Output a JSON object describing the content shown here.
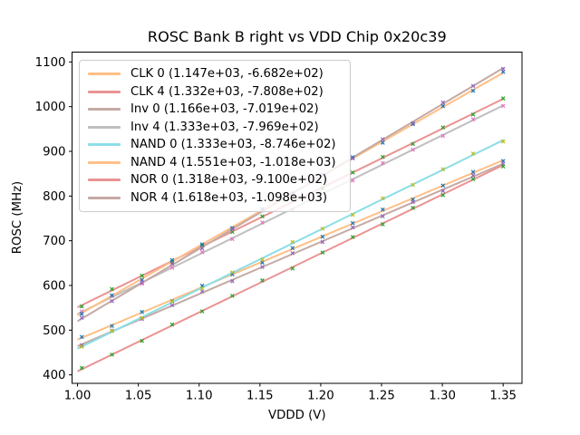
{
  "chart_data": {
    "type": "scatter",
    "title": "ROSC Bank B right vs VDD Chip 0x20c39",
    "xlabel": "VDDD (V)",
    "ylabel": "ROSC (MHz)",
    "xlim": [
      0.9955,
      1.3655
    ],
    "ylim": [
      381,
      1122
    ],
    "x_ticks": [
      1.0,
      1.05,
      1.1,
      1.15,
      1.2,
      1.25,
      1.3,
      1.35
    ],
    "x_tick_labels": [
      "1.00",
      "1.05",
      "1.10",
      "1.15",
      "1.20",
      "1.25",
      "1.30",
      "1.35"
    ],
    "y_ticks": [
      400,
      500,
      600,
      700,
      800,
      900,
      1000,
      1100
    ],
    "y_tick_labels": [
      "400",
      "500",
      "600",
      "700",
      "800",
      "900",
      "1000",
      "1100"
    ],
    "grid": false,
    "legend_position": "upper left",
    "marker_style": "x",
    "x": [
      1.0035,
      1.0283,
      1.053,
      1.0778,
      1.1025,
      1.1273,
      1.152,
      1.1768,
      1.2015,
      1.2263,
      1.251,
      1.2758,
      1.3005,
      1.3253,
      1.35
    ],
    "series": [
      {
        "name": "CLK 0",
        "legend_label": "CLK 0 (1.147e+03, -6.682e+02)",
        "fit_slope": 1147,
        "fit_intercept": -668.2,
        "line_color": "#ffbf86",
        "marker_color": "#1f77b4",
        "y": [
          484.8,
          509.3,
          540.6,
          565.0,
          599.4,
          624.8,
          651.1,
          683.6,
          708.9,
          739.4,
          769.7,
          792.1,
          823.5,
          853.9,
          878.3
        ]
      },
      {
        "name": "CLK 4",
        "legend_label": "CLK 4 (1.332e+03, -7.808e+02)",
        "fit_slope": 1332,
        "fit_intercept": -780.8,
        "line_color": "#ea9393",
        "marker_color": "#2ca02c",
        "y": [
          552.9,
          591.9,
          621.8,
          652.8,
          689.7,
          719.8,
          754.7,
          789.7,
          816.6,
          852.6,
          887.5,
          916.6,
          953.5,
          982.5,
          1018.4
        ]
      },
      {
        "name": "Inv 0",
        "legend_label": "Inv 0 (1.166e+03, -7.019e+02)",
        "fit_slope": 1166,
        "fit_intercept": -701.9,
        "line_color": "#c5aaa5",
        "marker_color": "#9467bd",
        "y": [
          466.2,
          499.1,
          524.9,
          555.8,
          586.6,
          609.5,
          641.3,
          672.3,
          697.1,
          730.0,
          754.8,
          786.7,
          811.5,
          846.4,
          872.2
        ]
      },
      {
        "name": "Inv 4",
        "legend_label": "Inv 4 (1.333e+03, -7.969e+02)",
        "fit_slope": 1333,
        "fit_intercept": -796.9,
        "line_color": "#bfbfbf",
        "marker_color": "#e377c2",
        "y": [
          541.8,
          576.8,
          603.8,
          639.8,
          674.7,
          703.8,
          740.7,
          769.8,
          805.7,
          834.8,
          873.7,
          903.7,
          934.7,
          971.7,
          1001.7
        ]
      },
      {
        "name": "NAND 0",
        "legend_label": "NAND 0 (1.333e+03, -8.746e+02)",
        "fit_slope": 1333,
        "fit_intercept": -874.6,
        "line_color": "#8bdee7",
        "marker_color": "#bcbd22",
        "y": [
          463.1,
          498.1,
          527.1,
          564.1,
          593.0,
          629.1,
          658.0,
          697.1,
          727.0,
          758.1,
          795.0,
          825.0,
          860.0,
          895.0,
          922.0
        ]
      },
      {
        "name": "NAND 4",
        "legend_label": "NAND 4 (1.551e+03, -1.018e+03)",
        "fit_slope": 1551,
        "fit_intercept": -1018,
        "line_color": "#ffbf86",
        "marker_color": "#1f77b4",
        "y": [
          536.4,
          577.9,
          612.2,
          656.7,
          692.0,
          728.4,
          770.8,
          806.2,
          846.5,
          887.0,
          919.3,
          960.8,
          1001.1,
          1035.5,
          1077.9
        ]
      },
      {
        "name": "NOR 0",
        "legend_label": "NOR 0 (1.318e+03, -9.100e+02)",
        "fit_slope": 1318,
        "fit_intercept": -910,
        "line_color": "#ea9393",
        "marker_color": "#2ca02c",
        "y": [
          415.6,
          445.3,
          475.9,
          512.5,
          542.1,
          576.8,
          611.3,
          638.0,
          673.6,
          708.3,
          736.8,
          773.5,
          802.1,
          837.8,
          866.3
        ]
      },
      {
        "name": "NOR 4",
        "legend_label": "NOR 4 (1.618e+03, -1.098e+03)",
        "fit_slope": 1618,
        "fit_intercept": -1098,
        "line_color": "#c5aaa5",
        "marker_color": "#9467bd",
        "y": [
          527.7,
          564.8,
          606.8,
          648.9,
          682.9,
          726.0,
          767.9,
          804.1,
          848.0,
          884.2,
          927.1,
          963.2,
          1009.2,
          1046.3,
          1084.3
        ]
      }
    ]
  }
}
